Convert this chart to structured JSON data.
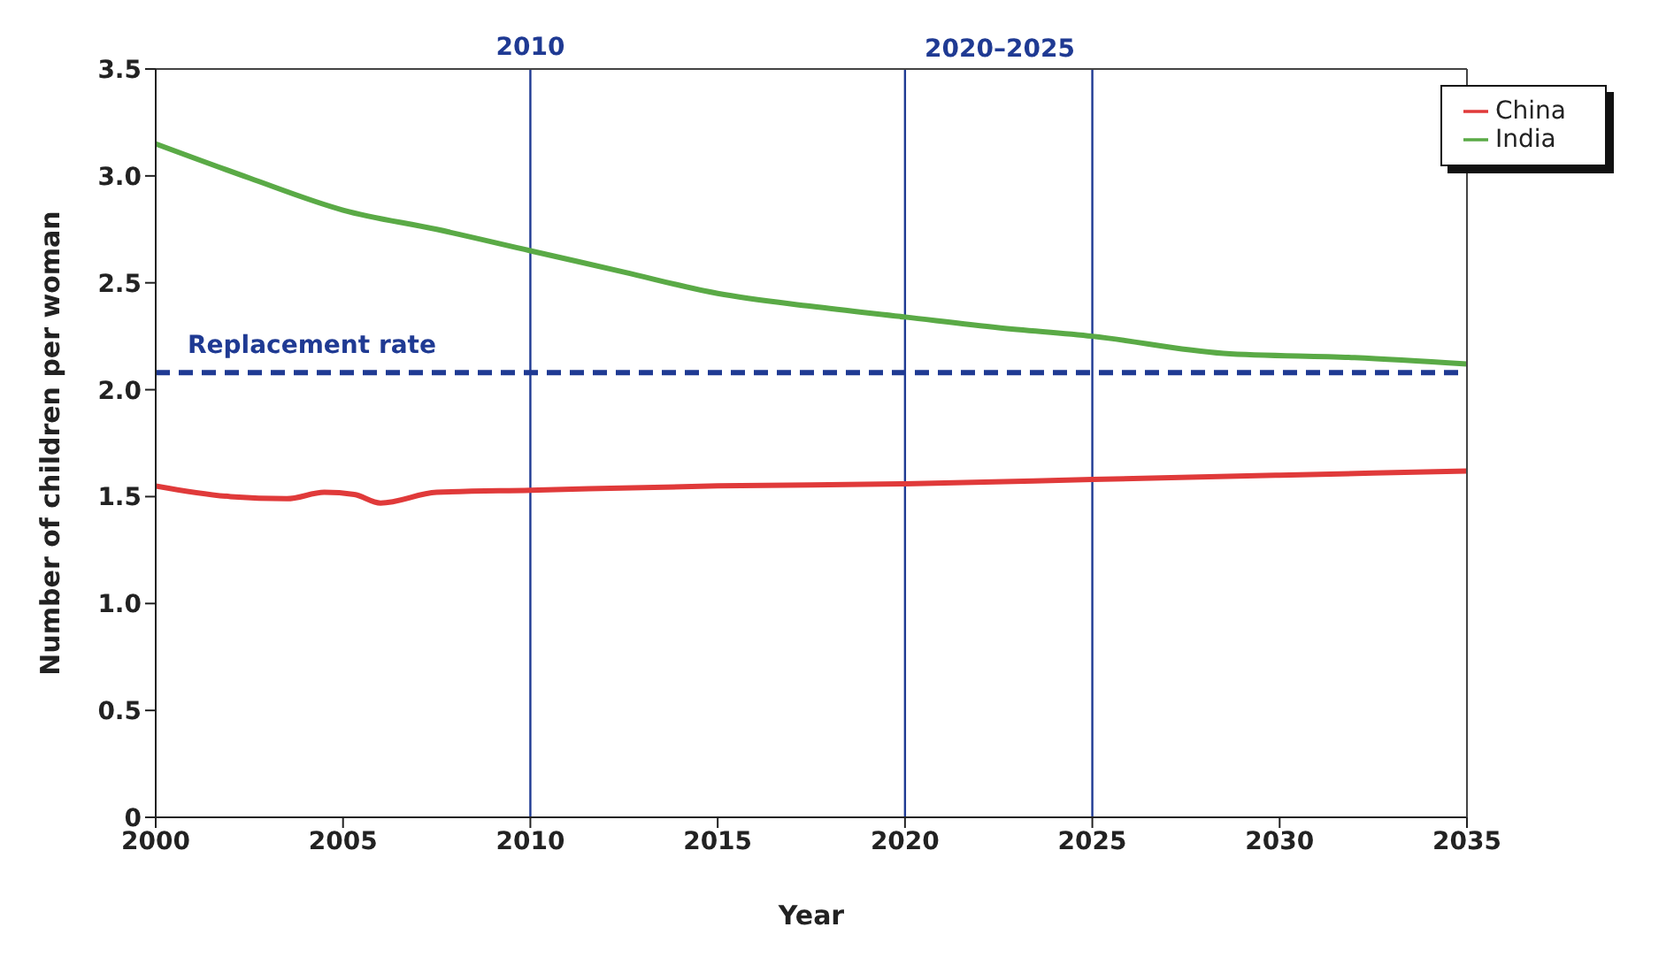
{
  "chart_data": {
    "type": "line",
    "xlabel": "Year",
    "ylabel": "Number of children per woman",
    "xlim": [
      2000,
      2035
    ],
    "xticks": [
      2000,
      2005,
      2010,
      2015,
      2020,
      2025,
      2030,
      2035
    ],
    "ylim": [
      0,
      3.5
    ],
    "yticks": [
      0,
      0.5,
      {
        "value": 1,
        "label": "1.0"
      },
      1.5,
      {
        "value": 2,
        "label": "2.0"
      },
      2.5,
      {
        "value": 3,
        "label": "3.0"
      },
      3.5
    ],
    "series": [
      {
        "name": "China",
        "color": "#e03a3a",
        "x": [
          2000,
          2002,
          2003.5,
          2004.5,
          2005.3,
          2006,
          2007.5,
          2010,
          2015,
          2020,
          2025,
          2030,
          2035
        ],
        "values": [
          1.55,
          1.5,
          1.49,
          1.52,
          1.51,
          1.47,
          1.52,
          1.53,
          1.55,
          1.56,
          1.58,
          1.6,
          1.62
        ]
      },
      {
        "name": "India",
        "color": "#5aaa46",
        "x": [
          2000,
          2002.5,
          2005,
          2007.5,
          2010,
          2012.5,
          2015,
          2017.5,
          2020,
          2022.5,
          2025,
          2028.5,
          2032,
          2035
        ],
        "values": [
          3.15,
          2.99,
          2.84,
          2.75,
          2.65,
          2.55,
          2.45,
          2.39,
          2.34,
          2.29,
          2.25,
          2.17,
          2.15,
          2.12
        ]
      }
    ],
    "ref_lines": [
      {
        "axis": "y",
        "value": 2.08,
        "label": "Replacement rate",
        "color": "#1f3a93",
        "line_style": "dashed"
      },
      {
        "axis": "x",
        "value": 2010,
        "label": "2010",
        "color": "#1f3a93"
      },
      {
        "axis": "x",
        "value": 2020,
        "color": "#1f3a93"
      },
      {
        "axis": "x",
        "value": 2025,
        "color": "#1f3a93"
      }
    ],
    "annotations": [
      "2020–2025"
    ],
    "legend": "top right",
    "grid": false,
    "marker": "none",
    "line_style": "solid"
  }
}
